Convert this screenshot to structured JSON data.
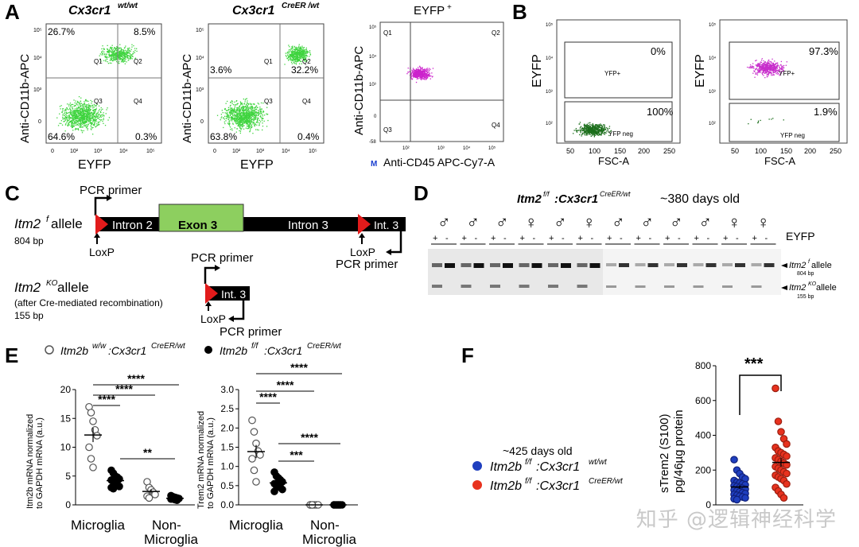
{
  "panel_labels": {
    "a": "A",
    "b": "B",
    "c": "C",
    "d": "D",
    "e": "E",
    "f": "F"
  },
  "panelA": {
    "plots": [
      {
        "title": "Cx3cr1",
        "title_sup": "wt/wt",
        "ylabel": "Anti-CD11b-APC",
        "xlabel": "EYFP",
        "q_tl": "26.7%",
        "q_tr": "8.5%",
        "q_bl": "64.6%",
        "q_br": "0.3%"
      },
      {
        "title": "Cx3cr1",
        "title_sup": "CreER /wt",
        "ylabel": "Anti-CD11b-APC",
        "xlabel": "EYFP",
        "q_tl": "3.6%",
        "q_tr": "32.2%",
        "q_bl": "63.8%",
        "q_br": "0.4%"
      },
      {
        "title": "EYFP",
        "title_sup": "+",
        "ylabel": "Anti-CD11b-APC",
        "xlabel": "Anti-CD45 APC-Cy7-A"
      }
    ],
    "quadrants": {
      "q1": "Q1",
      "q2": "Q2",
      "q3": "Q3",
      "q4": "Q4"
    },
    "ticks_x": [
      "0",
      "10²",
      "10³",
      "10⁴",
      "10⁵"
    ],
    "ticks_y": [
      "10⁵",
      "10⁴",
      "10³",
      "0"
    ],
    "tick_neg": "-58",
    "m_marker": "M"
  },
  "panelB": {
    "plots": [
      {
        "ylabel": "EYFP",
        "xlabel": "FSC-A",
        "gate_top": "YFP+",
        "gate_top_pct": "0%",
        "gate_bottom": "YFP neg",
        "gate_bottom_pct": "100%"
      },
      {
        "ylabel": "EYFP",
        "xlabel": "FSC-A",
        "gate_top": "YFP+",
        "gate_top_pct": "97.3%",
        "gate_bottom": "YFP neg",
        "gate_bottom_pct": "1.9%"
      }
    ],
    "ticks_x": [
      "50",
      "100",
      "150",
      "200",
      "250"
    ],
    "ticks_y": [
      "10⁵",
      "10⁴",
      "10³",
      "10²"
    ]
  },
  "panelC": {
    "allele1_name": "Itm2",
    "allele1_sup": "f",
    "allele1_suffix": " allele",
    "allele1_size": "804 bp",
    "allele2_name": "Itm2",
    "allele2_sup": "KO",
    "allele2_suffix": " allele",
    "allele2_note": "(after Cre-mediated recombination)",
    "allele2_size": "155 bp",
    "pcr_primer": "PCR primer",
    "loxp": "LoxP",
    "intron2": "Intron 2",
    "exon3": "Exon 3",
    "intron3": "Intron 3",
    "int3": "Int. 3"
  },
  "panelD": {
    "title_a": "Itm2",
    "title_sup_f": "f/f",
    "title_b": ":Cx3cr1",
    "title_sup_c": "CreER/wt",
    "age": "~380 days old",
    "sexes": [
      "♂",
      "♂",
      "♂",
      "♀",
      "♂",
      "♀",
      "♂",
      "♂",
      "♂",
      "♂",
      "♀",
      "♀"
    ],
    "plus": "+",
    "minus": "-",
    "eyfp": "EYFP",
    "band1": "Itm2",
    "band1_sup": "f",
    "band1_suffix": " allele",
    "band1_size": "804 bp",
    "band2": "Itm2",
    "band2_sup": "KO",
    "band2_suffix": " allele",
    "band2_size": "155 bp"
  },
  "panelE": {
    "legend1": "Itm2b",
    "legend1_sup": "w/w",
    "legend1_b": ":Cx3cr1",
    "legend1_sup2": "CreER/wt",
    "legend2": "Itm2b",
    "legend2_sup": "f/f",
    "legend2_b": ":Cx3cr1",
    "legend2_sup2": "CreER/wt",
    "left": {
      "ylabel1": "Itm2b mRNA normalized",
      "ylabel2": "to GAPDH mRNA (a.u.)",
      "yticks": [
        "20",
        "15",
        "10",
        "5",
        "0"
      ],
      "stars": [
        "****",
        "****",
        "****",
        "**"
      ]
    },
    "right": {
      "ylabel1": "Trem2 mRNA normalized",
      "ylabel2": "to GAPDH mRNA (a.u.)",
      "yticks": [
        "3.0",
        "2.5",
        "2.0",
        "1.5",
        "1.0",
        "0.5",
        "0.0"
      ],
      "stars": [
        "****",
        "****",
        "****",
        "****",
        "***"
      ]
    },
    "cat1": "Microglia",
    "cat2a": "Non-",
    "cat2b": "Microglia"
  },
  "panelF": {
    "age": "~425 days old",
    "legend1": "Itm2b",
    "legend1_sup": "f/f",
    "legend1_b": ":Cx3cr1",
    "legend1_sup2": "wt/wt",
    "legend2": "Itm2b",
    "legend2_sup": "f/f",
    "legend2_b": ":Cx3cr1",
    "legend2_sup2": "CreER/wt",
    "ylabel1": "sTrem2 (S100)",
    "ylabel2": "pg/46µg protein",
    "yticks": [
      "800",
      "600",
      "400",
      "200",
      "0"
    ],
    "stars": "***",
    "colors": {
      "wt": "#1f3fbf",
      "cre": "#e8321e"
    }
  },
  "chart_data": [
    {
      "type": "scatter",
      "ylabel": "Itm2b mRNA normalized to GAPDH mRNA (a.u.)",
      "ylim": [
        0,
        20
      ],
      "categories": [
        "Microglia",
        "Non-Microglia"
      ],
      "series": [
        {
          "name": "Itm2b w/w:Cx3cr1 CreER/wt",
          "group": "Microglia",
          "values": [
            17,
            16,
            14.5,
            13,
            12,
            10,
            8,
            6.5
          ]
        },
        {
          "name": "Itm2b f/f:Cx3cr1 CreER/wt",
          "group": "Microglia",
          "values": [
            6,
            5.5,
            5,
            4.8,
            4.5,
            4.3,
            4,
            3.8,
            3.5,
            3.2,
            3,
            2.8
          ]
        },
        {
          "name": "Itm2b w/w:Cx3cr1 CreER/wt",
          "group": "Non-Microglia",
          "values": [
            4,
            3,
            2.6,
            2.2,
            1.8,
            1.5,
            1.2
          ]
        },
        {
          "name": "Itm2b f/f:Cx3cr1 CreER/wt",
          "group": "Non-Microglia",
          "values": [
            1.6,
            1.4,
            1.3,
            1.2,
            1.1,
            1.0,
            1.0,
            0.9,
            0.8
          ]
        }
      ]
    },
    {
      "type": "scatter",
      "ylabel": "Trem2 mRNA normalized to GAPDH mRNA (a.u.)",
      "ylim": [
        0,
        3
      ],
      "categories": [
        "Microglia",
        "Non-Microglia"
      ],
      "series": [
        {
          "name": "Itm2b w/w:Cx3cr1 CreER/wt",
          "group": "Microglia",
          "values": [
            2.2,
            1.9,
            1.6,
            1.4,
            1.3,
            1.2,
            0.9,
            0.6
          ]
        },
        {
          "name": "Itm2b f/f:Cx3cr1 CreER/wt",
          "group": "Microglia",
          "values": [
            0.85,
            0.75,
            0.7,
            0.65,
            0.6,
            0.55,
            0.5,
            0.5,
            0.45,
            0.4,
            0.35
          ]
        },
        {
          "name": "Itm2b w/w:Cx3cr1 CreER/wt",
          "group": "Non-Microglia",
          "values": [
            0,
            0,
            0,
            0,
            0,
            0,
            0
          ]
        },
        {
          "name": "Itm2b f/f:Cx3cr1 CreER/wt",
          "group": "Non-Microglia",
          "values": [
            0,
            0,
            0,
            0,
            0,
            0,
            0,
            0,
            0
          ]
        }
      ]
    },
    {
      "type": "scatter",
      "ylabel": "sTrem2 (S100) pg/46µg protein",
      "ylim": [
        0,
        800
      ],
      "series": [
        {
          "name": "Itm2b f/f:Cx3cr1 wt/wt",
          "color": "#1f3fbf",
          "values": [
            260,
            200,
            180,
            160,
            150,
            140,
            130,
            125,
            120,
            115,
            110,
            105,
            100,
            95,
            90,
            85,
            80,
            75,
            70,
            65,
            60,
            55,
            50,
            45,
            40,
            35,
            30
          ]
        },
        {
          "name": "Itm2b f/f:Cx3cr1 CreER/wt",
          "color": "#e8321e",
          "values": [
            670,
            480,
            420,
            380,
            350,
            330,
            310,
            300,
            290,
            280,
            270,
            260,
            250,
            240,
            230,
            220,
            210,
            200,
            190,
            180,
            170,
            160,
            150,
            140,
            120,
            100,
            80,
            60,
            40
          ]
        }
      ]
    }
  ]
}
